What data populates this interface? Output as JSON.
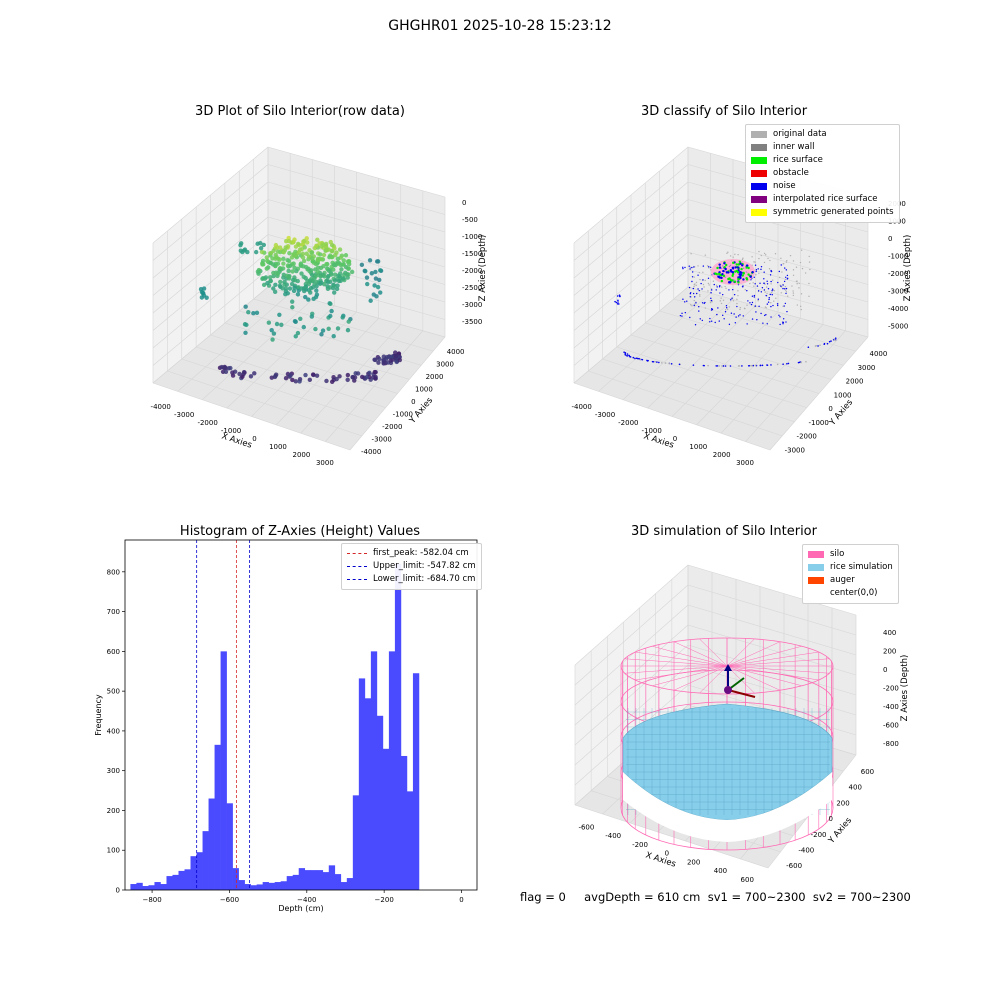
{
  "suptitle": "GHGHR01 2025-10-28 15:23:12",
  "footer": "flag = 0     avgDepth = 610 cm  sv1 = 700~2300  sv2 = 700~2300",
  "colors": {
    "hist_bar": "#4a4aff",
    "first_peak": "#d62728",
    "limit": "#0000cc"
  },
  "chart_data": [
    {
      "type": "scatter3d",
      "title": "3D Plot of Silo Interior(row data)",
      "xlabel": "X Axies",
      "ylabel": "Y Axies",
      "zlabel": "Z Axies (Depth)",
      "x_ticks": [
        "-4000",
        "-3000",
        "-2000",
        "-1000",
        "0",
        "1000",
        "2000",
        "3000"
      ],
      "y_ticks": [
        "-4000",
        "-3000",
        "-2000",
        "-1000",
        "0",
        "1000",
        "2000",
        "3000",
        "4000"
      ],
      "z_ticks": [
        "0",
        "-500",
        "-1000",
        "-1500",
        "-2000",
        "-2500",
        "-3000",
        "-3500"
      ],
      "colormap": "viridis"
    },
    {
      "type": "scatter3d",
      "title": "3D classify of Silo Interior",
      "xlabel": "X Axies",
      "ylabel": "Y Axies",
      "zlabel": "Z Axies (Depth)",
      "x_ticks": [
        "-4000",
        "-3000",
        "-2000",
        "-1000",
        "0",
        "1000",
        "2000",
        "3000"
      ],
      "y_ticks": [
        "-3000",
        "-2000",
        "-1000",
        "0",
        "1000",
        "2000",
        "3000",
        "4000"
      ],
      "z_ticks": [
        "2000",
        "1000",
        "0",
        "-1000",
        "-2000",
        "-3000",
        "-4000",
        "-5000"
      ],
      "legend": [
        {
          "label": "original data",
          "color": "#b0b0b0"
        },
        {
          "label": "inner wall",
          "color": "#808080"
        },
        {
          "label": "rice surface",
          "color": "#00ee00"
        },
        {
          "label": "obstacle",
          "color": "#ee0000"
        },
        {
          "label": "noise",
          "color": "#0000ee"
        },
        {
          "label": "interpolated rice surface",
          "color": "#800080"
        },
        {
          "label": "symmetric generated points",
          "color": "#ffff00"
        }
      ]
    },
    {
      "type": "bar",
      "title": "Histogram of Z-Axies (Height) Values",
      "xlabel": "Depth (cm)",
      "ylabel": "Frequency",
      "xlim": [
        -870,
        40
      ],
      "ylim": [
        0,
        880
      ],
      "x_ticks": [
        -800,
        -600,
        -400,
        -200,
        0
      ],
      "y_ticks": [
        0,
        100,
        200,
        300,
        400,
        500,
        600,
        700,
        800
      ],
      "bin_start": -856,
      "bin_width": 15.54,
      "values": [
        15,
        18,
        10,
        12,
        20,
        15,
        35,
        38,
        48,
        52,
        85,
        95,
        148,
        230,
        365,
        600,
        218,
        55,
        25,
        15,
        12,
        14,
        20,
        18,
        20,
        22,
        35,
        38,
        55,
        50,
        50,
        50,
        45,
        62,
        40,
        20,
        30,
        238,
        532,
        482,
        600,
        438,
        355,
        600,
        820,
        337,
        248,
        545
      ],
      "lines": [
        {
          "label": "first_peak: -582.04 cm",
          "x": -582.04,
          "color": "#d62728"
        },
        {
          "label": "Upper_limit: -547.82 cm",
          "x": -547.82,
          "color": "#0000cc"
        },
        {
          "label": "Lower_limit: -684.70 cm",
          "x": -684.7,
          "color": "#0000cc"
        }
      ]
    },
    {
      "type": "surface3d",
      "title": "3D simulation of Silo Interior",
      "xlabel": "X Axies",
      "ylabel": "Y Axies",
      "zlabel": "Z Axies (Depth)",
      "x_ticks": [
        "-600",
        "-400",
        "-200",
        "0",
        "200",
        "400",
        "600"
      ],
      "y_ticks": [
        "-600",
        "-400",
        "-200",
        "0",
        "200",
        "400",
        "600"
      ],
      "z_ticks": [
        "400",
        "200",
        "0",
        "-200",
        "-400",
        "-600",
        "-800"
      ],
      "legend": [
        {
          "label": "silo",
          "color": "#ff69b4"
        },
        {
          "label": "rice simulation",
          "color": "#87ceeb"
        },
        {
          "label": "auger",
          "color": "#ff4500"
        },
        {
          "label": "center(0,0)",
          "color": ""
        }
      ]
    }
  ]
}
